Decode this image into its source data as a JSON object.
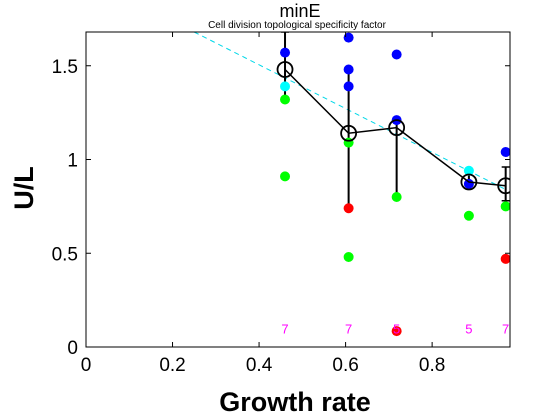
{
  "chart_data": {
    "type": "scatter",
    "title": "minE",
    "subtitle": "Cell division topological specificity factor",
    "xlabel": "Growth rate",
    "ylabel": "U/L",
    "xlim": [
      0,
      0.98
    ],
    "ylim": [
      0,
      1.68
    ],
    "xticks": [
      0,
      0.2,
      0.4,
      0.6,
      0.8
    ],
    "xtick_labels": [
      "0",
      "0.2",
      "0.4",
      "0.6",
      "0.8"
    ],
    "yticks": [
      0,
      0.5,
      1,
      1.5
    ],
    "ytick_labels": [
      "0",
      "0.5",
      "1",
      "1.5"
    ],
    "grid": false,
    "colors": {
      "blue": "#0000ff",
      "cyan": "#00ffff",
      "green": "#00ff00",
      "red": "#ff0000",
      "black": "#000000",
      "fit_line": "#00d8e8",
      "n_label": "#ff00ff"
    },
    "points": [
      {
        "x": 0.46,
        "y": 1.57,
        "color": "blue"
      },
      {
        "x": 0.46,
        "y": 1.39,
        "color": "cyan"
      },
      {
        "x": 0.46,
        "y": 1.32,
        "color": "green"
      },
      {
        "x": 0.46,
        "y": 0.91,
        "color": "green"
      },
      {
        "x": 0.607,
        "y": 1.65,
        "color": "blue"
      },
      {
        "x": 0.607,
        "y": 1.48,
        "color": "blue"
      },
      {
        "x": 0.607,
        "y": 1.39,
        "color": "blue"
      },
      {
        "x": 0.607,
        "y": 1.09,
        "color": "green"
      },
      {
        "x": 0.607,
        "y": 0.74,
        "color": "red"
      },
      {
        "x": 0.607,
        "y": 0.48,
        "color": "green"
      },
      {
        "x": 0.718,
        "y": 1.56,
        "color": "blue"
      },
      {
        "x": 0.718,
        "y": 1.21,
        "color": "blue"
      },
      {
        "x": 0.718,
        "y": 0.8,
        "color": "green"
      },
      {
        "x": 0.718,
        "y": 0.085,
        "color": "red"
      },
      {
        "x": 0.885,
        "y": 0.94,
        "color": "cyan"
      },
      {
        "x": 0.885,
        "y": 0.87,
        "color": "blue"
      },
      {
        "x": 0.885,
        "y": 0.7,
        "color": "green"
      },
      {
        "x": 0.97,
        "y": 1.04,
        "color": "blue"
      },
      {
        "x": 0.97,
        "y": 0.75,
        "color": "green"
      },
      {
        "x": 0.97,
        "y": 0.47,
        "color": "red"
      }
    ],
    "means": [
      {
        "x": 0.46,
        "y": 1.48,
        "err_low": 1.32,
        "err_high": 1.68
      },
      {
        "x": 0.607,
        "y": 1.14,
        "err_low": 0.74,
        "err_high": 1.48
      },
      {
        "x": 0.718,
        "y": 1.17,
        "err_low": 0.8,
        "err_high": 1.21
      },
      {
        "x": 0.885,
        "y": 0.88,
        "err_low": 0.86,
        "err_high": 0.94
      },
      {
        "x": 0.97,
        "y": 0.86,
        "err_low": 0.78,
        "err_high": 0.96
      }
    ],
    "fit_line": {
      "x": [
        0.25,
        0.97
      ],
      "y": [
        1.68,
        0.84
      ]
    },
    "n_labels": [
      {
        "x": 0.46,
        "text": "7"
      },
      {
        "x": 0.607,
        "text": "7"
      },
      {
        "x": 0.718,
        "text": "5"
      },
      {
        "x": 0.885,
        "text": "5"
      },
      {
        "x": 0.97,
        "text": "7"
      }
    ],
    "n_label_y": 0.1
  }
}
